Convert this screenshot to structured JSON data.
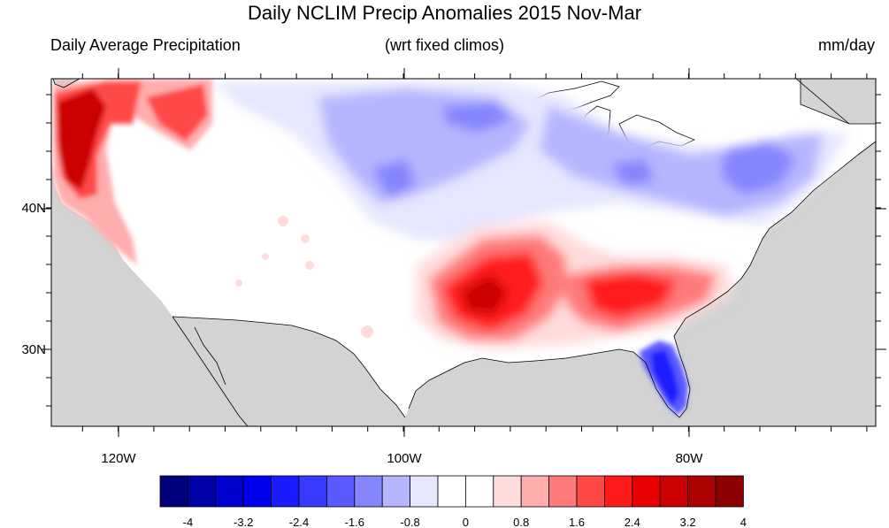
{
  "title": "Daily NCLIM Precip Anomalies 2015 Nov-Mar",
  "left_subtitle": "Daily Average Precipitation",
  "center_subtitle": "(wrt fixed climos)",
  "right_subtitle": "mm/day",
  "lat_labels": [
    "40N",
    "30N"
  ],
  "lon_labels": [
    "120W",
    "100W",
    "80W"
  ],
  "colorbar": {
    "colors": [
      "#00007a",
      "#0000a8",
      "#0000cf",
      "#0000f0",
      "#1b1bff",
      "#3a3aff",
      "#5a5aff",
      "#8585ff",
      "#b6b6ff",
      "#e6e6ff",
      "#ffffff",
      "#ffffff",
      "#ffdcdc",
      "#ffadad",
      "#ff7a7a",
      "#ff4848",
      "#ff1a1a",
      "#ea0000",
      "#cc0000",
      "#ad0000",
      "#8e0000"
    ],
    "tick_labels": [
      "-4",
      "-3.2",
      "-2.4",
      "-1.6",
      "-0.8",
      "0",
      "0.8",
      "1.6",
      "2.4",
      "3.2",
      "4"
    ]
  }
}
